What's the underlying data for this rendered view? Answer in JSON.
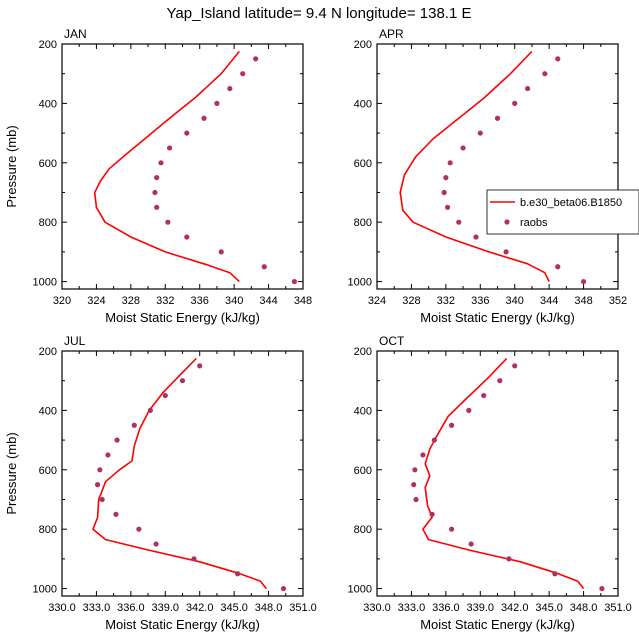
{
  "figure": {
    "title": "Yap_Island  latitude= 9.4 N longitude= 138.1 E"
  },
  "legend": {
    "model_label": "b.e30_beta06.B1850",
    "obs_label": "raobs",
    "model_color": "#ff0000",
    "obs_color": "#b03060"
  },
  "chart_data": [
    {
      "type": "line",
      "panel": "JAN",
      "xlabel": "Moist Static Energy (kJ/kg)",
      "ylabel": "Pressure (mb)",
      "xlim": [
        320,
        348
      ],
      "xticks": [
        320,
        324,
        328,
        332,
        336,
        340,
        344,
        348
      ],
      "xtick_labels": [
        "320",
        "324",
        "328",
        "332",
        "336",
        "340",
        "344",
        "348"
      ],
      "ylim": [
        200,
        1025
      ],
      "yticks": [
        200,
        400,
        600,
        800,
        1000
      ],
      "y_reversed": true,
      "series": [
        {
          "name": "b.e30_beta06.B1850",
          "style": "line",
          "points": [
            [
              340.6,
              225
            ],
            [
              338.5,
              300
            ],
            [
              335.5,
              380
            ],
            [
              332.5,
              450
            ],
            [
              330,
              510
            ],
            [
              327.5,
              570
            ],
            [
              325.5,
              620
            ],
            [
              324.5,
              660
            ],
            [
              323.8,
              700
            ],
            [
              324,
              750
            ],
            [
              325,
              800
            ],
            [
              328,
              850
            ],
            [
              332,
              900
            ],
            [
              337,
              945
            ],
            [
              339.5,
              970
            ],
            [
              340.6,
              1000
            ]
          ]
        },
        {
          "name": "raobs",
          "style": "marker",
          "points": [
            [
              342.5,
              250
            ],
            [
              341,
              300
            ],
            [
              339.5,
              350
            ],
            [
              338,
              400
            ],
            [
              336.5,
              450
            ],
            [
              334.5,
              500
            ],
            [
              332.5,
              550
            ],
            [
              331.5,
              600
            ],
            [
              331,
              650
            ],
            [
              330.8,
              700
            ],
            [
              331,
              750
            ],
            [
              332.3,
              800
            ],
            [
              334.5,
              850
            ],
            [
              338.5,
              900
            ],
            [
              343.5,
              950
            ],
            [
              347,
              1000
            ]
          ]
        }
      ]
    },
    {
      "type": "line",
      "panel": "APR",
      "xlabel": "Moist Static Energy (kJ/kg)",
      "ylabel": "",
      "xlim": [
        324,
        352
      ],
      "xticks": [
        324,
        328,
        332,
        336,
        340,
        344,
        348,
        352
      ],
      "xtick_labels": [
        "324",
        "328",
        "332",
        "336",
        "340",
        "344",
        "348",
        "352"
      ],
      "ylim": [
        200,
        1025
      ],
      "yticks": [
        200,
        400,
        600,
        800,
        1000
      ],
      "y_reversed": true,
      "series": [
        {
          "name": "b.e30_beta06.B1850",
          "style": "line",
          "points": [
            [
              342,
              225
            ],
            [
              339.5,
              300
            ],
            [
              336.5,
              380
            ],
            [
              333.5,
              450
            ],
            [
              330.5,
              520
            ],
            [
              328.5,
              580
            ],
            [
              327.2,
              640
            ],
            [
              326.7,
              700
            ],
            [
              327,
              760
            ],
            [
              328.2,
              800
            ],
            [
              332,
              850
            ],
            [
              337,
              900
            ],
            [
              341.5,
              940
            ],
            [
              343.5,
              970
            ],
            [
              344,
              1000
            ]
          ]
        },
        {
          "name": "raobs",
          "style": "marker",
          "points": [
            [
              345,
              250
            ],
            [
              343.5,
              300
            ],
            [
              341.5,
              350
            ],
            [
              340,
              400
            ],
            [
              338,
              450
            ],
            [
              336,
              500
            ],
            [
              334,
              550
            ],
            [
              332.5,
              600
            ],
            [
              332,
              650
            ],
            [
              331.8,
              700
            ],
            [
              332.2,
              750
            ],
            [
              333.5,
              800
            ],
            [
              335.5,
              850
            ],
            [
              339,
              900
            ],
            [
              345,
              950
            ],
            [
              348,
              1000
            ]
          ]
        }
      ]
    },
    {
      "type": "line",
      "panel": "JUL",
      "xlabel": "Moist Static Energy (kJ/kg)",
      "ylabel": "Pressure (mb)",
      "xlim": [
        330,
        351
      ],
      "xticks": [
        330,
        333,
        336,
        339,
        342,
        345,
        348,
        351
      ],
      "xtick_labels": [
        "330.0",
        "333.0",
        "336.0",
        "339.0",
        "342.0",
        "345.0",
        "348.0",
        "351.0"
      ],
      "ylim": [
        200,
        1025
      ],
      "yticks": [
        200,
        400,
        600,
        800,
        1000
      ],
      "y_reversed": true,
      "series": [
        {
          "name": "b.e30_beta06.B1850",
          "style": "line",
          "points": [
            [
              341.7,
              225
            ],
            [
              340.3,
              280
            ],
            [
              338.8,
              340
            ],
            [
              337.6,
              400
            ],
            [
              336.8,
              460
            ],
            [
              336.3,
              520
            ],
            [
              336.1,
              570
            ],
            [
              335,
              600
            ],
            [
              333.8,
              640
            ],
            [
              333.2,
              700
            ],
            [
              333.1,
              760
            ],
            [
              332.7,
              800
            ],
            [
              333.8,
              835
            ],
            [
              337.5,
              870
            ],
            [
              342,
              910
            ],
            [
              345.5,
              950
            ],
            [
              347.3,
              975
            ],
            [
              347.8,
              1000
            ]
          ]
        },
        {
          "name": "raobs",
          "style": "marker",
          "points": [
            [
              342,
              250
            ],
            [
              340.5,
              300
            ],
            [
              339,
              350
            ],
            [
              337.7,
              400
            ],
            [
              336.3,
              450
            ],
            [
              334.8,
              500
            ],
            [
              334,
              550
            ],
            [
              333.3,
              600
            ],
            [
              333.1,
              650
            ],
            [
              333.5,
              700
            ],
            [
              334.7,
              750
            ],
            [
              336.7,
              800
            ],
            [
              338.2,
              850
            ],
            [
              341.5,
              900
            ],
            [
              345.3,
              950
            ],
            [
              349.3,
              1000
            ]
          ]
        }
      ]
    },
    {
      "type": "line",
      "panel": "OCT",
      "xlabel": "Moist Static Energy (kJ/kg)",
      "ylabel": "",
      "xlim": [
        330,
        351
      ],
      "xticks": [
        330,
        333,
        336,
        339,
        342,
        345,
        348,
        351
      ],
      "xtick_labels": [
        "330.0",
        "333.0",
        "336.0",
        "339.0",
        "342.0",
        "345.0",
        "348.0",
        "351.0"
      ],
      "ylim": [
        200,
        1025
      ],
      "yticks": [
        200,
        400,
        600,
        800,
        1000
      ],
      "y_reversed": true,
      "series": [
        {
          "name": "b.e30_beta06.B1850",
          "style": "line",
          "points": [
            [
              341.3,
              225
            ],
            [
              339.7,
              290
            ],
            [
              337.8,
              360
            ],
            [
              336.2,
              420
            ],
            [
              335.3,
              480
            ],
            [
              334.6,
              530
            ],
            [
              334.2,
              580
            ],
            [
              334.6,
              620
            ],
            [
              334.2,
              660
            ],
            [
              334.4,
              720
            ],
            [
              334.8,
              760
            ],
            [
              334,
              800
            ],
            [
              334.5,
              835
            ],
            [
              338,
              870
            ],
            [
              342.5,
              910
            ],
            [
              345.8,
              950
            ],
            [
              347.5,
              975
            ],
            [
              348,
              1000
            ]
          ]
        },
        {
          "name": "raobs",
          "style": "marker",
          "points": [
            [
              342,
              250
            ],
            [
              340.7,
              300
            ],
            [
              339.3,
              350
            ],
            [
              338,
              400
            ],
            [
              336.5,
              450
            ],
            [
              335,
              500
            ],
            [
              334,
              550
            ],
            [
              333.3,
              600
            ],
            [
              333.2,
              650
            ],
            [
              333.4,
              700
            ],
            [
              334.8,
              750
            ],
            [
              336.5,
              800
            ],
            [
              338.2,
              850
            ],
            [
              341.5,
              900
            ],
            [
              345.5,
              950
            ],
            [
              349.6,
              1000
            ]
          ]
        }
      ]
    }
  ]
}
